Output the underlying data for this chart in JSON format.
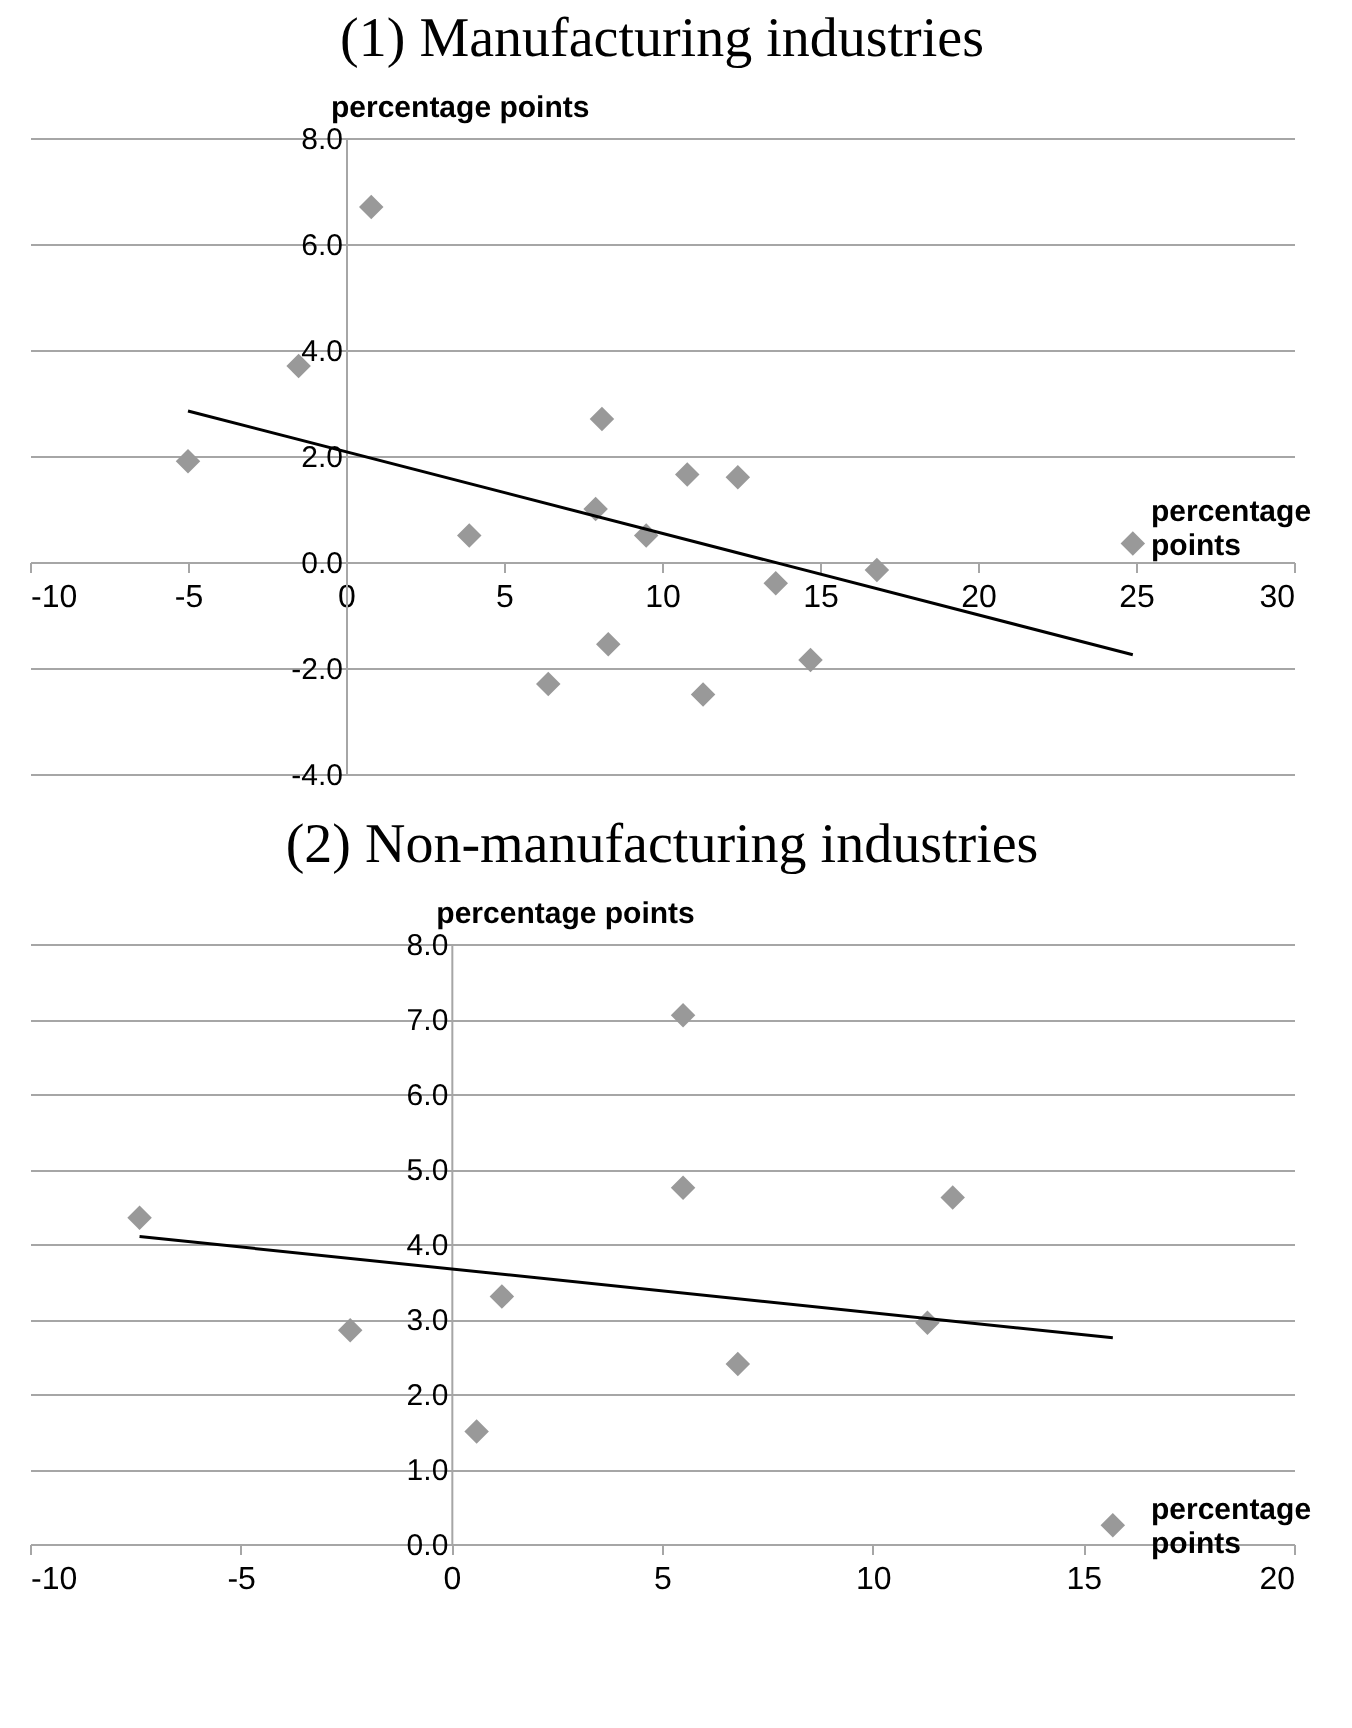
{
  "chart_data": [
    {
      "type": "scatter",
      "title": "(1) Manufacturing industries",
      "xlabel": "percentage points",
      "ylabel": "percentage points",
      "marker": "diamond",
      "grid": "y",
      "legend": false,
      "xlim": [
        -10,
        30
      ],
      "xticks": [
        -10,
        -5,
        0,
        5,
        10,
        15,
        20,
        25,
        30
      ],
      "ylim": [
        -4,
        8
      ],
      "yticks": [
        {
          "value": -4,
          "label": "-4.0"
        },
        {
          "value": -2,
          "label": "-2.0"
        },
        {
          "value": 0,
          "label": "0.0"
        },
        {
          "value": 2,
          "label": "2.0"
        },
        {
          "value": 4,
          "label": "4.0"
        },
        {
          "value": 6,
          "label": "6.0"
        },
        {
          "value": 8,
          "label": "8.0"
        }
      ],
      "series": [
        {
          "type": "scatter",
          "color": "#999999",
          "x": [
            -5,
            -1.5,
            0.8,
            3.9,
            6.4,
            7.9,
            8.1,
            8.3,
            9.5,
            10.8,
            11.3,
            12.4,
            13.6,
            14.7,
            16.8,
            24.9
          ],
          "values": [
            1.9,
            3.7,
            6.7,
            0.5,
            -2.3,
            1.0,
            2.7,
            -1.55,
            0.5,
            1.65,
            -2.5,
            1.6,
            -0.4,
            -1.85,
            -0.15,
            0.35
          ]
        },
        {
          "type": "line",
          "color": "#000000",
          "marker": "none",
          "x": [
            -5,
            24.9
          ],
          "values": [
            2.85,
            -1.75
          ]
        }
      ]
    },
    {
      "type": "scatter",
      "title": "(2) Non-manufacturing industries",
      "xlabel": "percentage points",
      "ylabel": "percentage points",
      "marker": "diamond",
      "grid": "y",
      "legend": false,
      "xlim": [
        -10,
        20
      ],
      "xticks": [
        -10,
        -5,
        0,
        5,
        10,
        15,
        20
      ],
      "ylim": [
        0,
        8
      ],
      "yticks": [
        {
          "value": 0,
          "label": "0.0"
        },
        {
          "value": 1,
          "label": "1.0"
        },
        {
          "value": 2,
          "label": "2.0"
        },
        {
          "value": 3,
          "label": "3.0"
        },
        {
          "value": 4,
          "label": "4.0"
        },
        {
          "value": 5,
          "label": "5.0"
        },
        {
          "value": 6,
          "label": "6.0"
        },
        {
          "value": 7,
          "label": "7.0"
        },
        {
          "value": 8,
          "label": "8.0"
        }
      ],
      "series": [
        {
          "type": "scatter",
          "color": "#999999",
          "x": [
            -7.4,
            -2.4,
            0.6,
            1.2,
            5.5,
            5.5,
            6.8,
            11.3,
            11.9,
            15.7
          ],
          "values": [
            4.35,
            2.85,
            1.5,
            3.3,
            7.05,
            4.75,
            2.4,
            2.95,
            4.62,
            0.25
          ]
        },
        {
          "type": "line",
          "color": "#000000",
          "marker": "none",
          "x": [
            -7.4,
            15.7
          ],
          "values": [
            4.1,
            2.75
          ]
        }
      ]
    }
  ]
}
